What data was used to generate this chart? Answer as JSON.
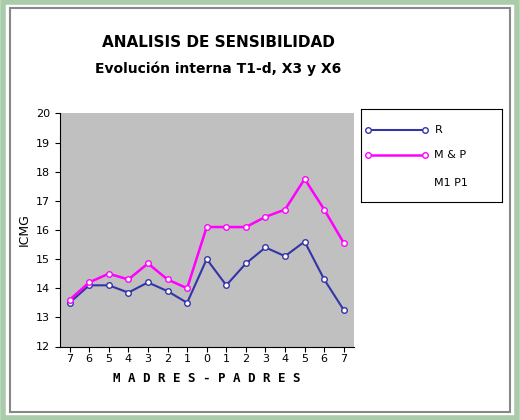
{
  "title_line1": "ANALISIS DE SENSIBILIDAD",
  "title_line2": "Evolución interna T1-d, X3 y X6",
  "xlabel": "M A D R E S - P A D R E S",
  "ylabel": "ICMG",
  "x_tick_labels": [
    "7",
    "6",
    "5",
    "4",
    "3",
    "2",
    "1",
    "0",
    "1",
    "2",
    "3",
    "4",
    "5",
    "6",
    "7"
  ],
  "x_values": [
    0,
    1,
    2,
    3,
    4,
    5,
    6,
    7,
    8,
    9,
    10,
    11,
    12,
    13,
    14
  ],
  "R_values": [
    13.5,
    14.1,
    14.1,
    13.85,
    14.2,
    13.9,
    13.5,
    15.0,
    14.1,
    14.85,
    15.4,
    15.1,
    15.6,
    14.3,
    13.25
  ],
  "MP_values": [
    13.6,
    14.2,
    14.5,
    14.3,
    14.85,
    14.3,
    14.0,
    16.1,
    16.1,
    16.1,
    16.45,
    16.7,
    17.75,
    16.7,
    15.55
  ],
  "R_color": "#3333aa",
  "MP_color": "#ff00ff",
  "ylim": [
    12,
    20
  ],
  "ytick_min": 12,
  "ytick_max": 20,
  "plot_bg_color": "#c0c0c0",
  "fig_bg_color": "#ffffff",
  "outer_border_color": "#aaccaa",
  "legend_labels": [
    "R",
    "M & P",
    "M1 P1"
  ],
  "marker": "o",
  "marker_size": 4,
  "title_fontsize": 11,
  "subtitle_fontsize": 10,
  "axis_label_fontsize": 9,
  "tick_fontsize": 8
}
